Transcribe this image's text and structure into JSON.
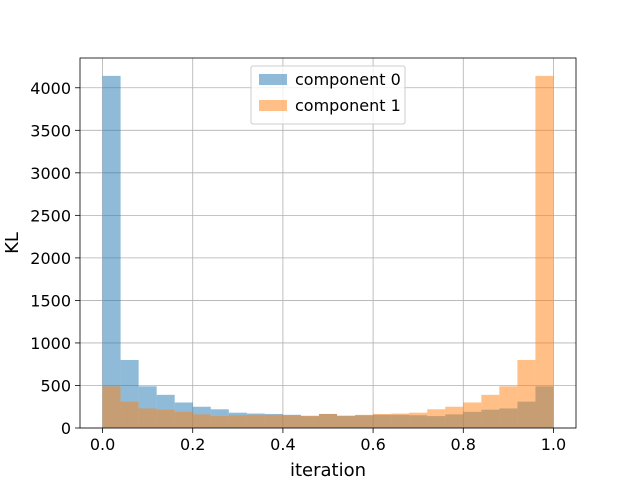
{
  "chart_data": {
    "type": "bar",
    "xlabel": "iteration",
    "ylabel": "KL",
    "xlim": [
      -0.05,
      1.05
    ],
    "ylim": [
      0,
      4350
    ],
    "xticks": [
      0.0,
      0.2,
      0.4,
      0.6,
      0.8,
      1.0
    ],
    "xtick_labels": [
      "0.0",
      "0.2",
      "0.4",
      "0.6",
      "0.8",
      "1.0"
    ],
    "yticks": [
      0,
      500,
      1000,
      1500,
      2000,
      2500,
      3000,
      3500,
      4000
    ],
    "ytick_labels": [
      "0",
      "500",
      "1000",
      "1500",
      "2000",
      "2500",
      "3000",
      "3500",
      "4000"
    ],
    "grid": true,
    "legend": "top-center",
    "bin_edges": [
      0.0,
      0.04,
      0.08,
      0.12,
      0.16,
      0.2,
      0.24,
      0.28,
      0.32,
      0.36,
      0.4,
      0.44,
      0.48,
      0.52,
      0.56,
      0.6,
      0.64,
      0.68,
      0.72,
      0.76,
      0.8,
      0.84,
      0.88,
      0.92,
      0.96,
      1.0
    ],
    "series": [
      {
        "name": "component 0",
        "color": "#1f77b4",
        "alpha": 0.5,
        "values": [
          4140,
          800,
          490,
          390,
          300,
          250,
          220,
          180,
          170,
          165,
          155,
          140,
          165,
          145,
          150,
          155,
          155,
          150,
          140,
          160,
          190,
          215,
          230,
          310,
          490
        ]
      },
      {
        "name": "component 1",
        "color": "#ff7f0e",
        "alpha": 0.5,
        "values": [
          490,
          310,
          230,
          215,
          190,
          160,
          140,
          150,
          155,
          155,
          150,
          145,
          165,
          140,
          155,
          165,
          170,
          180,
          220,
          250,
          300,
          390,
          490,
          800,
          4140
        ]
      }
    ]
  }
}
